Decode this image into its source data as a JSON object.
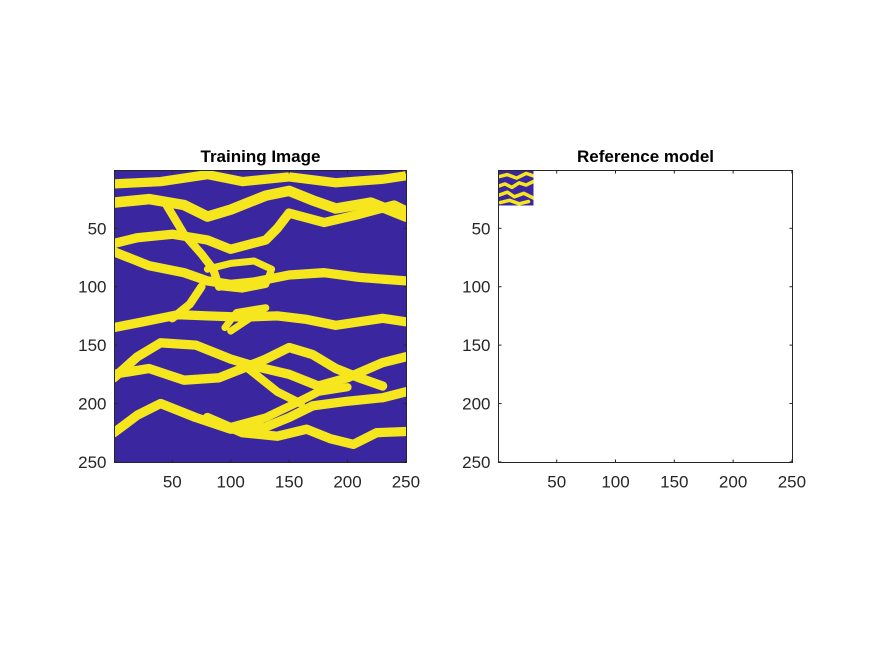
{
  "colors": {
    "background": "#ffffff",
    "channel": "#f5e61e",
    "matrix": "#3a27a0",
    "axis": "#262626"
  },
  "chart_data": [
    {
      "type": "heatmap",
      "title": "Training Image",
      "xlabel": "",
      "ylabel": "",
      "xlim": [
        0.5,
        250.5
      ],
      "ylim": [
        0.5,
        250.5
      ],
      "y_reversed": true,
      "colormap": "parula (binary: 0 = dark blue, 1 = yellow)",
      "x_ticks": [
        "50",
        "100",
        "150",
        "200",
        "250"
      ],
      "y_ticks": [
        "50",
        "100",
        "150",
        "200",
        "250"
      ],
      "grid": false,
      "description": "binary channel facies image",
      "channels": [
        {
          "width": 8,
          "points": [
            [
              0,
              12
            ],
            [
              40,
              10
            ],
            [
              80,
              4
            ],
            [
              110,
              10
            ],
            [
              150,
              6
            ],
            [
              190,
              11
            ],
            [
              230,
              8
            ],
            [
              250,
              5
            ]
          ]
        },
        {
          "width": 9,
          "points": [
            [
              0,
              28
            ],
            [
              30,
              25
            ],
            [
              60,
              30
            ],
            [
              80,
              40
            ],
            [
              100,
              34
            ],
            [
              130,
              22
            ],
            [
              150,
              18
            ],
            [
              170,
              26
            ],
            [
              190,
              33
            ],
            [
              220,
              28
            ],
            [
              250,
              40
            ]
          ]
        },
        {
          "width": 8,
          "points": [
            [
              0,
              63
            ],
            [
              20,
              58
            ],
            [
              50,
              55
            ],
            [
              80,
              60
            ],
            [
              100,
              68
            ],
            [
              130,
              60
            ],
            [
              140,
              50
            ],
            [
              150,
              37
            ],
            [
              180,
              45
            ],
            [
              210,
              38
            ],
            [
              240,
              30
            ],
            [
              250,
              35
            ]
          ]
        },
        {
          "width": 8,
          "points": [
            [
              0,
              70
            ],
            [
              30,
              82
            ],
            [
              60,
              88
            ],
            [
              80,
              95
            ],
            [
              100,
              98
            ],
            [
              120,
              96
            ],
            [
              150,
              90
            ],
            [
              180,
              88
            ],
            [
              210,
              92
            ],
            [
              250,
              95
            ]
          ]
        },
        {
          "width": 7,
          "points": [
            [
              45,
              30
            ],
            [
              60,
              55
            ],
            [
              75,
              72
            ],
            [
              85,
              85
            ],
            [
              90,
              100
            ]
          ]
        },
        {
          "width": 6,
          "points": [
            [
              80,
              85
            ],
            [
              100,
              80
            ],
            [
              120,
              78
            ],
            [
              135,
              85
            ],
            [
              130,
              98
            ],
            [
              110,
              102
            ],
            [
              90,
              100
            ]
          ]
        },
        {
          "width": 8,
          "points": [
            [
              0,
              135
            ],
            [
              25,
              130
            ],
            [
              55,
              124
            ],
            [
              80,
              125
            ],
            [
              110,
              126
            ],
            [
              140,
              125
            ],
            [
              165,
              128
            ],
            [
              190,
              133
            ],
            [
              210,
              130
            ],
            [
              230,
              127
            ],
            [
              250,
              130
            ]
          ]
        },
        {
          "width": 7,
          "points": [
            [
              75,
              100
            ],
            [
              65,
              115
            ],
            [
              50,
              127
            ]
          ]
        },
        {
          "width": 6,
          "points": [
            [
              95,
              135
            ],
            [
              105,
              122
            ],
            [
              130,
              118
            ],
            [
              115,
              128
            ],
            [
              100,
              138
            ]
          ]
        },
        {
          "width": 8,
          "points": [
            [
              0,
              178
            ],
            [
              20,
              160
            ],
            [
              40,
              148
            ],
            [
              70,
              150
            ],
            [
              100,
              162
            ],
            [
              120,
              168
            ],
            [
              150,
              175
            ],
            [
              175,
              185
            ],
            [
              200,
              178
            ],
            [
              230,
              165
            ],
            [
              250,
              160
            ]
          ]
        },
        {
          "width": 8,
          "points": [
            [
              0,
              175
            ],
            [
              30,
              170
            ],
            [
              60,
              180
            ],
            [
              90,
              178
            ],
            [
              110,
              170
            ],
            [
              130,
              162
            ],
            [
              150,
              152
            ],
            [
              170,
              158
            ],
            [
              190,
              170
            ],
            [
              210,
              178
            ],
            [
              230,
              185
            ]
          ]
        },
        {
          "width": 8,
          "points": [
            [
              0,
              225
            ],
            [
              20,
              210
            ],
            [
              40,
              200
            ],
            [
              70,
              212
            ],
            [
              100,
              222
            ],
            [
              130,
              220
            ],
            [
              150,
              212
            ],
            [
              170,
              202
            ],
            [
              200,
              198
            ],
            [
              230,
              195
            ],
            [
              250,
              190
            ]
          ]
        },
        {
          "width": 8,
          "points": [
            [
              80,
              212
            ],
            [
              110,
              225
            ],
            [
              140,
              228
            ],
            [
              165,
              222
            ],
            [
              185,
              230
            ],
            [
              205,
              235
            ],
            [
              225,
              225
            ],
            [
              250,
              224
            ]
          ]
        },
        {
          "width": 7,
          "points": [
            [
              100,
              220
            ],
            [
              130,
              212
            ],
            [
              155,
              200
            ],
            [
              175,
              190
            ],
            [
              200,
              186
            ]
          ]
        },
        {
          "width": 7,
          "points": [
            [
              115,
              170
            ],
            [
              140,
              190
            ],
            [
              160,
              200
            ]
          ]
        }
      ]
    },
    {
      "type": "heatmap",
      "title": "Reference model",
      "xlabel": "",
      "ylabel": "",
      "xlim": [
        0.5,
        250.5
      ],
      "ylim": [
        0.5,
        250.5
      ],
      "y_reversed": true,
      "x_ticks": [
        "50",
        "100",
        "150",
        "200",
        "250"
      ],
      "y_ticks": [
        "50",
        "100",
        "150",
        "200",
        "250"
      ],
      "grid": false,
      "description": "only a small patch in the top-left corner (about 30 x 30 cells) is filled; the rest of the axes is blank white",
      "filled_region": {
        "x": [
          0.5,
          30.5
        ],
        "y": [
          0.5,
          30.5
        ]
      },
      "channels": [
        {
          "width": 3,
          "points": [
            [
              0,
              6
            ],
            [
              8,
              4
            ],
            [
              16,
              7
            ],
            [
              24,
              3
            ],
            [
              30,
              5
            ]
          ]
        },
        {
          "width": 3,
          "points": [
            [
              0,
              14
            ],
            [
              6,
              12
            ],
            [
              12,
              15
            ],
            [
              18,
              11
            ],
            [
              24,
              13
            ],
            [
              30,
              10
            ]
          ]
        },
        {
          "width": 3,
          "points": [
            [
              0,
              22
            ],
            [
              8,
              19
            ],
            [
              14,
              23
            ],
            [
              22,
              20
            ],
            [
              30,
              24
            ]
          ]
        },
        {
          "width": 3,
          "points": [
            [
              2,
              28
            ],
            [
              10,
              26
            ],
            [
              18,
              29
            ],
            [
              26,
              27
            ]
          ]
        }
      ]
    }
  ]
}
